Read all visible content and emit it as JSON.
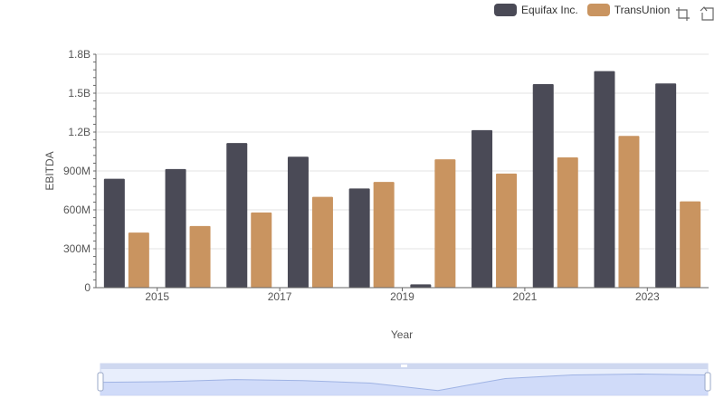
{
  "legend": {
    "items": [
      {
        "label": "Equifax Inc.",
        "color": "#4a4a56"
      },
      {
        "label": "TransUnion",
        "color": "#c99460"
      }
    ]
  },
  "toolbox": {
    "icons": [
      "zoom-icon",
      "reset-icon"
    ]
  },
  "chart_data": {
    "type": "bar",
    "categories": [
      "2014",
      "2015",
      "2016",
      "2017",
      "2018",
      "2019",
      "2020",
      "2021",
      "2022",
      "2023"
    ],
    "x_tick_labels": [
      "2015",
      "2017",
      "2019",
      "2021",
      "2023"
    ],
    "series": [
      {
        "name": "Equifax Inc.",
        "color": "#4a4a56",
        "values": [
          840000000,
          915000000,
          1115000000,
          1010000000,
          765000000,
          25000000,
          1215000000,
          1570000000,
          1670000000,
          1575000000
        ]
      },
      {
        "name": "TransUnion",
        "color": "#c99460",
        "values": [
          425000000,
          475000000,
          580000000,
          700000000,
          815000000,
          990000000,
          880000000,
          1005000000,
          1170000000,
          665000000
        ]
      }
    ],
    "xlabel": "Year",
    "ylabel": "EBITDA",
    "ylim": [
      0,
      1800000000
    ],
    "y_ticks": [
      0,
      300000000,
      600000000,
      900000000,
      1200000000,
      1500000000,
      1800000000
    ],
    "y_tick_labels": [
      "0",
      "300M",
      "600M",
      "900M",
      "1.2B",
      "1.5B",
      "1.8B"
    ],
    "grid": true,
    "legend_position": "top-right",
    "slider": {
      "start": 0,
      "end": 100
    }
  }
}
